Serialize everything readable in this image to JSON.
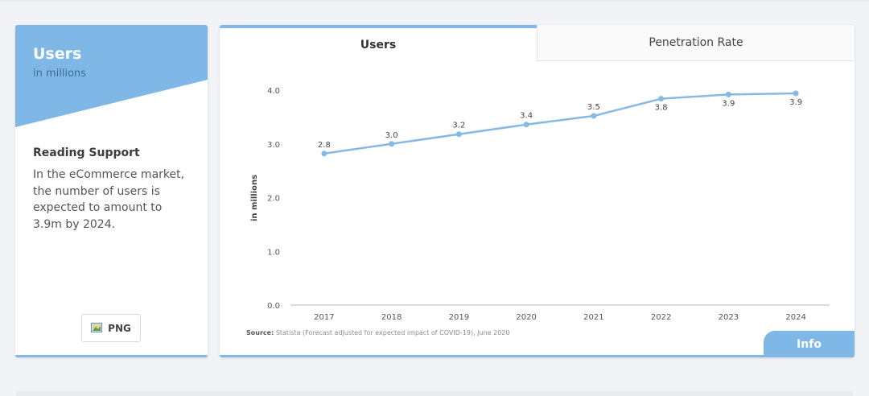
{
  "left_panel": {
    "title": "Users",
    "subtitle": "in millions",
    "support_title": "Reading Support",
    "support_text": "In the eCommerce market, the number of users is expected to amount to 3.9m by 2024.",
    "png_label": "PNG",
    "png_icon": "image-icon"
  },
  "tabs": {
    "active": "Users",
    "other": "Penetration Rate"
  },
  "source": {
    "label": "Source:",
    "text": "Statista (Forecast adjusted for expected impact of COVID-19), June 2020"
  },
  "info_label": "Info",
  "colors": {
    "accent": "#7fb8e6",
    "line": "#86b9e3"
  },
  "chart_data": {
    "type": "line",
    "categories": [
      "2017",
      "2018",
      "2019",
      "2020",
      "2021",
      "2022",
      "2023",
      "2024"
    ],
    "series": [
      {
        "values": [
          2.82,
          3.0,
          3.18,
          3.36,
          3.52,
          3.84,
          3.92,
          3.94
        ],
        "labels": [
          "2.8",
          "3.0",
          "3.2",
          "3.4",
          "3.5",
          "3.8",
          "3.9",
          "3.9"
        ]
      }
    ],
    "ylabel": "in millions",
    "xlabel": "",
    "ylim": [
      0,
      4
    ],
    "yticks": [
      "0.0",
      "1.0",
      "2.0",
      "3.0",
      "4.0"
    ],
    "grid": false
  }
}
